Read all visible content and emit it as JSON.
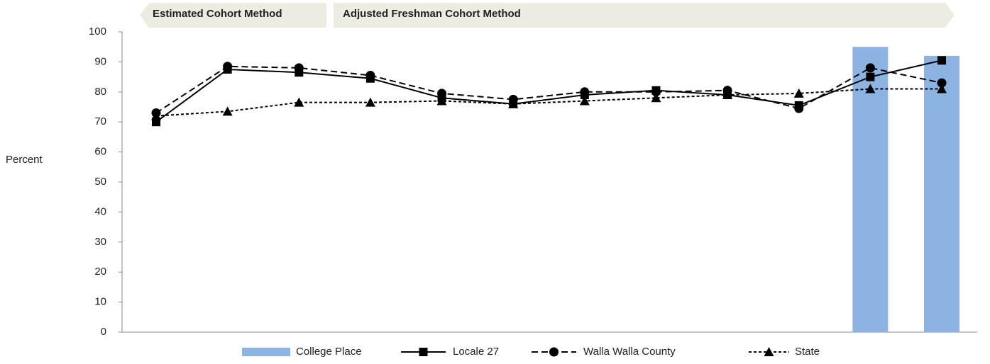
{
  "chart_data": {
    "type": "line",
    "annotations": [
      "Estimated Cohort Method",
      "Adjusted Freshman Cohort Method"
    ],
    "y_label": "Percent",
    "categories": [
      null,
      null,
      null,
      null,
      null,
      null,
      null,
      null,
      null,
      null,
      null,
      null
    ],
    "ylim": [
      0,
      100
    ],
    "yticks": [
      0,
      10,
      20,
      30,
      40,
      50,
      60,
      70,
      80,
      90,
      100
    ],
    "grid": false,
    "legend": "bottom",
    "series": [
      {
        "name": "College Place",
        "type": "bar",
        "color": "#8db3e2",
        "values": [
          null,
          null,
          null,
          null,
          null,
          null,
          null,
          null,
          null,
          null,
          95,
          92
        ]
      },
      {
        "name": "Locale 27",
        "type": "line",
        "color": "#000000",
        "dash": "solid",
        "marker": "square",
        "values": [
          70,
          87.5,
          86.5,
          84.5,
          78,
          76,
          79,
          80.5,
          79,
          75.5,
          85,
          90.5
        ]
      },
      {
        "name": "Walla Walla County",
        "type": "line",
        "color": "#000000",
        "dash": "dashed",
        "marker": "circle",
        "values": [
          73,
          88.5,
          88,
          85.5,
          79.5,
          77.5,
          80,
          80,
          80.5,
          74.5,
          88,
          83
        ]
      },
      {
        "name": "State",
        "type": "line",
        "color": "#000000",
        "dash": "dotted",
        "marker": "triangle",
        "values": [
          72,
          73.5,
          76.5,
          76.5,
          77,
          76,
          77,
          78,
          79,
          79.5,
          81,
          81
        ]
      }
    ]
  }
}
